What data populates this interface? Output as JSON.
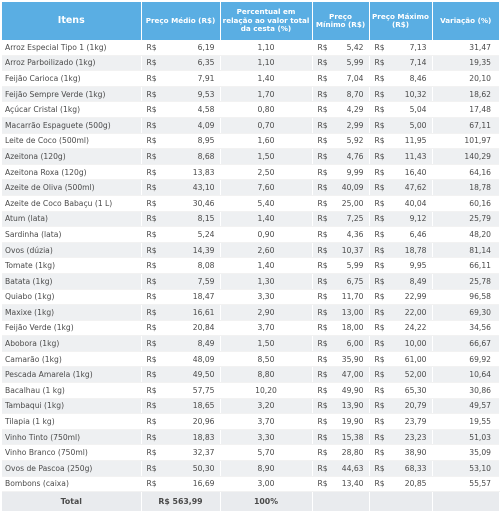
{
  "headers": {
    "items": "Itens",
    "avg_price": "Preço Médio (R$)",
    "percent": "Percentual em relação ao valor total da cesta (%)",
    "min_price": "Preço Mínimo (R$)",
    "max_price": "Preço Máximo (R$)",
    "variation": "Variação (%)"
  },
  "currency": "R$",
  "rows": [
    {
      "item": "Arroz Especial Tipo 1 (1kg)",
      "avg": "6,19",
      "pct": "1,10",
      "min": "5,42",
      "max": "7,13",
      "var": "31,47"
    },
    {
      "item": "Arroz Parboilizado (1kg)",
      "avg": "6,35",
      "pct": "1,10",
      "min": "5,99",
      "max": "7,14",
      "var": "19,35"
    },
    {
      "item": "Feijão Carioca (1kg)",
      "avg": "7,91",
      "pct": "1,40",
      "min": "7,04",
      "max": "8,46",
      "var": "20,10"
    },
    {
      "item": "Feijão Sempre Verde (1kg)",
      "avg": "9,53",
      "pct": "1,70",
      "min": "8,70",
      "max": "10,32",
      "var": "18,62"
    },
    {
      "item": "Açúcar Cristal (1kg)",
      "avg": "4,58",
      "pct": "0,80",
      "min": "4,29",
      "max": "5,04",
      "var": "17,48"
    },
    {
      "item": "Macarrão Espaguete (500g)",
      "avg": "4,09",
      "pct": "0,70",
      "min": "2,99",
      "max": "5,00",
      "var": "67,11"
    },
    {
      "item": "Leite de Coco (500ml)",
      "avg": "8,95",
      "pct": "1,60",
      "min": "5,92",
      "max": "11,95",
      "var": "101,97"
    },
    {
      "item": "Azeitona (120g)",
      "avg": "8,68",
      "pct": "1,50",
      "min": "4,76",
      "max": "11,43",
      "var": "140,29"
    },
    {
      "item": "Azeitona Roxa (120g)",
      "avg": "13,83",
      "pct": "2,50",
      "min": "9,99",
      "max": "16,40",
      "var": "64,16"
    },
    {
      "item": "Azeite de Oliva (500ml)",
      "avg": "43,10",
      "pct": "7,60",
      "min": "40,09",
      "max": "47,62",
      "var": "18,78"
    },
    {
      "item": "Azeite de Coco Babaçu (1 L)",
      "avg": "30,46",
      "pct": "5,40",
      "min": "25,00",
      "max": "40,04",
      "var": "60,16"
    },
    {
      "item": "Atum (lata)",
      "avg": "8,15",
      "pct": "1,40",
      "min": "7,25",
      "max": "9,12",
      "var": "25,79"
    },
    {
      "item": "Sardinha (lata)",
      "avg": "5,24",
      "pct": "0,90",
      "min": "4,36",
      "max": "6,46",
      "var": "48,20"
    },
    {
      "item": "Ovos (dúzia)",
      "avg": "14,39",
      "pct": "2,60",
      "min": "10,37",
      "max": "18,78",
      "var": "81,14"
    },
    {
      "item": "Tomate (1kg)",
      "avg": "8,08",
      "pct": "1,40",
      "min": "5,99",
      "max": "9,95",
      "var": "66,11"
    },
    {
      "item": "Batata (1kg)",
      "avg": "7,59",
      "pct": "1,30",
      "min": "6,75",
      "max": "8,49",
      "var": "25,78"
    },
    {
      "item": "Quiabo (1kg)",
      "avg": "18,47",
      "pct": "3,30",
      "min": "11,70",
      "max": "22,99",
      "var": "96,58"
    },
    {
      "item": "Maxixe (1kg)",
      "avg": "16,61",
      "pct": "2,90",
      "min": "13,00",
      "max": "22,00",
      "var": "69,30"
    },
    {
      "item": "Feijão Verde (1kg)",
      "avg": "20,84",
      "pct": "3,70",
      "min": "18,00",
      "max": "24,22",
      "var": "34,56"
    },
    {
      "item": "Abobora (1kg)",
      "avg": "8,49",
      "pct": "1,50",
      "min": "6,00",
      "max": "10,00",
      "var": "66,67"
    },
    {
      "item": "Camarão (1kg)",
      "avg": "48,09",
      "pct": "8,50",
      "min": "35,90",
      "max": "61,00",
      "var": "69,92"
    },
    {
      "item": "Pescada Amarela (1kg)",
      "avg": "49,50",
      "pct": "8,80",
      "min": "47,00",
      "max": "52,00",
      "var": "10,64"
    },
    {
      "item": "Bacalhau (1 kg)",
      "avg": "57,75",
      "pct": "10,20",
      "min": "49,90",
      "max": "65,30",
      "var": "30,86"
    },
    {
      "item": "Tambaqui (1kg)",
      "avg": "18,65",
      "pct": "3,20",
      "min": "13,90",
      "max": "20,79",
      "var": "49,57"
    },
    {
      "item": "Tilapia (1 kg)",
      "avg": "20,96",
      "pct": "3,70",
      "min": "19,90",
      "max": "23,79",
      "var": "19,55"
    },
    {
      "item": "Vinho Tinto (750ml)",
      "avg": "18,83",
      "pct": "3,30",
      "min": "15,38",
      "max": "23,23",
      "var": "51,03"
    },
    {
      "item": "Vinho Branco (750ml)",
      "avg": "32,37",
      "pct": "5,70",
      "min": "28,80",
      "max": "38,90",
      "var": "35,09"
    },
    {
      "item": "Ovos de Pascoa (250g)",
      "avg": "50,30",
      "pct": "8,90",
      "min": "44,63",
      "max": "68,33",
      "var": "53,10"
    },
    {
      "item": "Bombons (caixa)",
      "avg": "16,69",
      "pct": "3,00",
      "min": "13,40",
      "max": "20,85",
      "var": "55,57"
    }
  ],
  "total": {
    "label": "Total",
    "avg": "R$ 563,99",
    "pct": "100%"
  },
  "colors": {
    "header_bg": "#5aaee3",
    "header_text": "#ffffff",
    "stripe": "#eef0f2"
  }
}
